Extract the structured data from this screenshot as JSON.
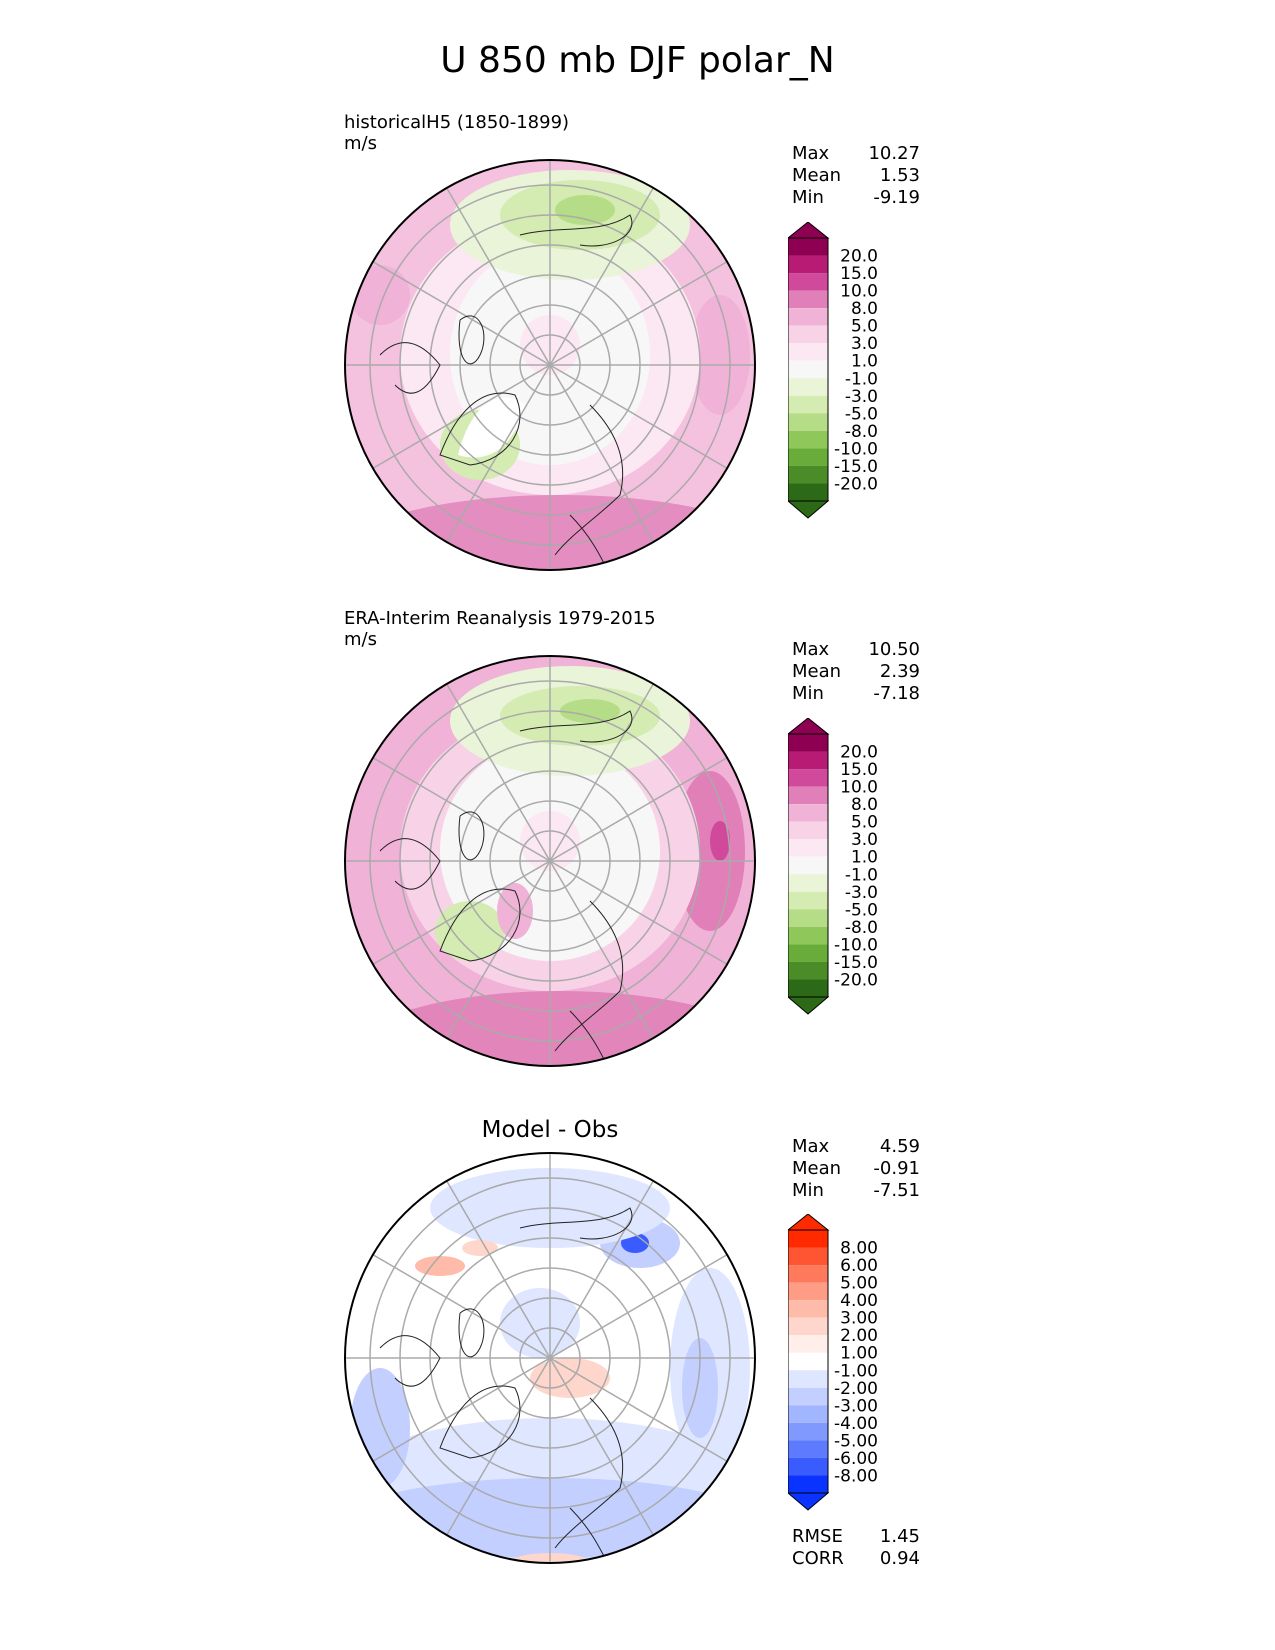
{
  "figure": {
    "title": "U 850 mb DJF polar_N"
  },
  "panels": [
    {
      "id": "model",
      "title": "historicalH5 (1850-1899)",
      "units": "m/s",
      "stats": [
        {
          "label": "Max",
          "value": "10.27"
        },
        {
          "label": "Mean",
          "value": "1.53"
        },
        {
          "label": "Min",
          "value": "-9.19"
        }
      ],
      "colorbar": {
        "levels": [
          "20.0",
          "15.0",
          "10.0",
          "8.0",
          "5.0",
          "3.0",
          "1.0",
          "-1.0",
          "-3.0",
          "-5.0",
          "-8.0",
          "-10.0",
          "-15.0",
          "-20.0"
        ],
        "colors": [
          "#8e0152",
          "#b81b74",
          "#d0499a",
          "#e07fb8",
          "#f0b2d6",
          "#f8d3e8",
          "#fce8f2",
          "#f7f7f7",
          "#eaf4d9",
          "#d4ebb1",
          "#b5dc86",
          "#8fc75b",
          "#6aac3a",
          "#4a8c27",
          "#2c6a18"
        ],
        "type": "diverging-pink-green"
      }
    },
    {
      "id": "obs",
      "title": "ERA-Interim Reanalysis 1979-2015",
      "units": "m/s",
      "stats": [
        {
          "label": "Max",
          "value": "10.50"
        },
        {
          "label": "Mean",
          "value": "2.39"
        },
        {
          "label": "Min",
          "value": "-7.18"
        }
      ],
      "colorbar": {
        "levels": [
          "20.0",
          "15.0",
          "10.0",
          "8.0",
          "5.0",
          "3.0",
          "1.0",
          "-1.0",
          "-3.0",
          "-5.0",
          "-8.0",
          "-10.0",
          "-15.0",
          "-20.0"
        ],
        "colors": [
          "#8e0152",
          "#b81b74",
          "#d0499a",
          "#e07fb8",
          "#f0b2d6",
          "#f8d3e8",
          "#fce8f2",
          "#f7f7f7",
          "#eaf4d9",
          "#d4ebb1",
          "#b5dc86",
          "#8fc75b",
          "#6aac3a",
          "#4a8c27",
          "#2c6a18"
        ],
        "type": "diverging-pink-green"
      }
    },
    {
      "id": "diff",
      "title": "Model - Obs",
      "units": "",
      "stats": [
        {
          "label": "Max",
          "value": "4.59"
        },
        {
          "label": "Mean",
          "value": "-0.91"
        },
        {
          "label": "Min",
          "value": "-7.51"
        }
      ],
      "colorbar": {
        "levels": [
          "8.00",
          "6.00",
          "5.00",
          "4.00",
          "3.00",
          "2.00",
          "1.00",
          "-1.00",
          "-2.00",
          "-3.00",
          "-4.00",
          "-5.00",
          "-6.00",
          "-8.00"
        ],
        "colors": [
          "#ff2a00",
          "#ff5533",
          "#ff7a5c",
          "#ff9c85",
          "#ffbbaa",
          "#ffd6cc",
          "#ffeeea",
          "#ffffff",
          "#dfe6ff",
          "#c2cfff",
          "#a2b5ff",
          "#8099ff",
          "#5c7bff",
          "#3a5cff",
          "#0a33ff"
        ],
        "type": "diverging-red-blue"
      }
    }
  ],
  "diff_stats": [
    {
      "label": "RMSE",
      "value": "1.45"
    },
    {
      "label": "CORR",
      "value": "0.94"
    }
  ]
}
